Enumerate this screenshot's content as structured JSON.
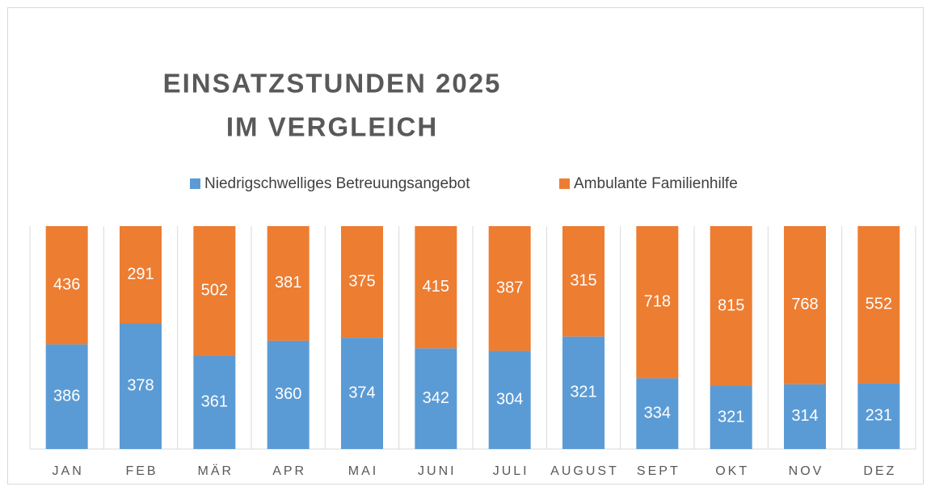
{
  "chart_data": {
    "type": "bar",
    "stacking": "percent",
    "title": [
      "EINSATZSTUNDEN 2025",
      "IM VERGLEICH"
    ],
    "categories": [
      "JAN",
      "FEB",
      "MÄR",
      "APR",
      "MAI",
      "JUNI",
      "JULI",
      "AUGUST",
      "SEPT",
      "OKT",
      "NOV",
      "DEZ"
    ],
    "series": [
      {
        "name": "Niedrigschwelliges Betreuungsangebot",
        "color": "#5b9bd5",
        "values": [
          386,
          378,
          361,
          360,
          374,
          342,
          304,
          321,
          334,
          321,
          314,
          231
        ]
      },
      {
        "name": "Ambulante Familienhilfe",
        "color": "#ed7d31",
        "values": [
          436,
          291,
          502,
          381,
          375,
          415,
          387,
          315,
          718,
          815,
          768,
          552
        ]
      }
    ],
    "legend": "top"
  }
}
